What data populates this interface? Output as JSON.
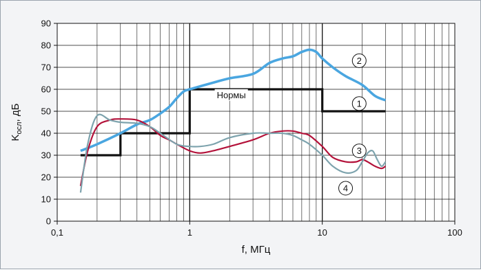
{
  "chart_data": {
    "type": "line",
    "xscale": "log",
    "xlim": [
      0.1,
      100
    ],
    "ylim": [
      0,
      90
    ],
    "xlabel": "f, МГц",
    "ylabel_main": "K",
    "ylabel_sub": "осл",
    "ylabel_rest": ", дБ",
    "x_tick_labels": [
      "0,1",
      "1",
      "10",
      "100"
    ],
    "x_tick_values": [
      0.1,
      1,
      10,
      100
    ],
    "y_tick_labels": [
      "0",
      "10",
      "20",
      "30",
      "40",
      "50",
      "60",
      "70",
      "80",
      "90"
    ],
    "y_tick_values": [
      0,
      10,
      20,
      30,
      40,
      50,
      60,
      70,
      80,
      90
    ],
    "grid": true,
    "annotation": {
      "text": "Нормы",
      "x": 1.6,
      "y": 56
    },
    "series": [
      {
        "id": "1",
        "color": "#111111",
        "style": "step",
        "x": [
          0.15,
          0.3,
          0.3,
          1,
          1,
          10,
          10,
          30
        ],
        "y": [
          30,
          30,
          40,
          40,
          60,
          60,
          50,
          50
        ]
      },
      {
        "id": "2",
        "color": "#4aa6e0",
        "x": [
          0.15,
          0.2,
          0.3,
          0.4,
          0.5,
          0.6,
          0.7,
          0.8,
          0.9,
          1.0,
          1.5,
          2,
          3,
          4,
          5,
          6,
          7,
          8,
          9,
          10,
          12,
          15,
          20,
          25,
          30
        ],
        "y": [
          32,
          35,
          40,
          44,
          46,
          49,
          52,
          56,
          59,
          60,
          63,
          65,
          67,
          72,
          74,
          75,
          77,
          78,
          77,
          74,
          70,
          66,
          62,
          57,
          55
        ]
      },
      {
        "id": "3",
        "color": "#b3123a",
        "x": [
          0.15,
          0.17,
          0.2,
          0.25,
          0.3,
          0.4,
          0.5,
          0.6,
          0.7,
          0.8,
          1.0,
          1.2,
          1.5,
          2,
          3,
          4,
          5,
          6,
          7,
          8,
          10,
          12,
          15,
          18,
          20,
          22,
          25,
          28,
          30
        ],
        "y": [
          16,
          32,
          43,
          46,
          46.5,
          46,
          43,
          39,
          37,
          35,
          32,
          31,
          32,
          34,
          37,
          40,
          41,
          41,
          40,
          39,
          34,
          29,
          27,
          27,
          28,
          27,
          25,
          24,
          25
        ]
      },
      {
        "id": "4",
        "color": "#7da3ad",
        "x": [
          0.15,
          0.17,
          0.2,
          0.25,
          0.3,
          0.4,
          0.5,
          0.6,
          0.8,
          1.0,
          1.2,
          1.5,
          2,
          3,
          4,
          5,
          6,
          7,
          8,
          10,
          12,
          15,
          18,
          20,
          22,
          24,
          26,
          28,
          30
        ],
        "y": [
          13,
          35,
          48,
          46,
          45,
          44.5,
          43,
          40,
          35,
          34,
          34,
          35,
          38,
          40,
          40,
          40,
          39,
          37,
          35,
          30,
          25,
          22,
          23,
          27,
          31,
          32,
          28,
          25,
          27
        ]
      }
    ],
    "markers": [
      {
        "label": "2",
        "x": 19,
        "y": 73
      },
      {
        "label": "1",
        "x": 19,
        "y": 53.5
      },
      {
        "label": "3",
        "x": 19,
        "y": 32
      },
      {
        "label": "4",
        "x": 15,
        "y": 15
      }
    ]
  }
}
